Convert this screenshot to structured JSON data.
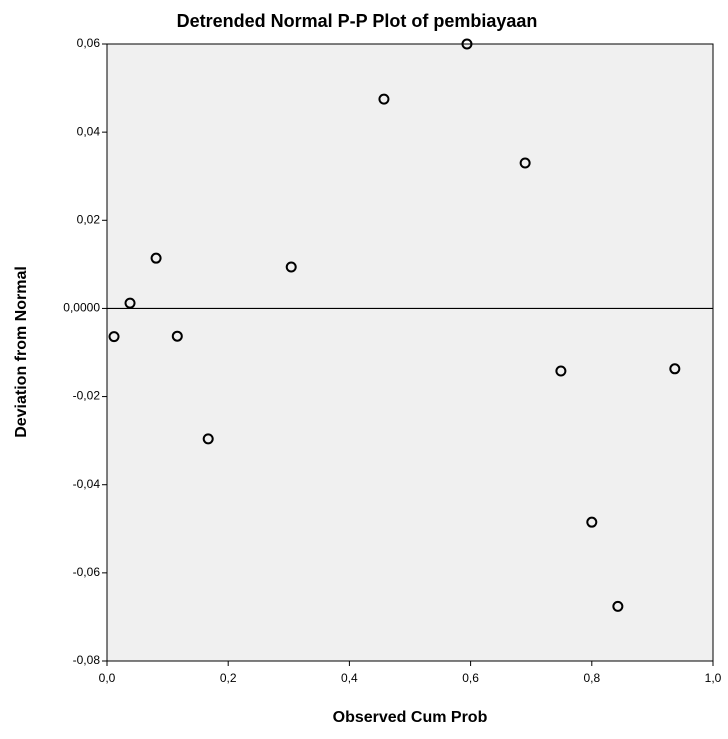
{
  "chart_data": {
    "type": "scatter",
    "title": "Detrended Normal P-P Plot of pembiayaan",
    "x_label": "Observed Cum Prob",
    "y_label": "Deviation from Normal",
    "x": [
      0.0116,
      0.038,
      0.081,
      0.116,
      0.167,
      0.304,
      0.457,
      0.594,
      0.69,
      0.749,
      0.8,
      0.843,
      0.937
    ],
    "values": [
      -0.0064,
      0.0012,
      0.0114,
      -0.0063,
      -0.0296,
      0.0094,
      0.0475,
      0.06,
      0.033,
      -0.0142,
      -0.0485,
      -0.0676,
      -0.0137
    ],
    "color": "#000000",
    "reference_y": 0,
    "xlim": [
      0,
      1
    ],
    "ylim": [
      -0.08,
      0.06
    ],
    "xticks": [
      {
        "value": 0,
        "label": "0,0"
      },
      {
        "value": 0.2,
        "label": "0,2"
      },
      {
        "value": 0.4,
        "label": "0,4"
      },
      {
        "value": 0.6,
        "label": "0,6"
      },
      {
        "value": 0.8,
        "label": "0,8"
      },
      {
        "value": 1,
        "label": "1,0"
      }
    ],
    "yticks": [
      {
        "value": -0.08,
        "label": "-0,08"
      },
      {
        "value": -0.06,
        "label": "-0,06"
      },
      {
        "value": -0.04,
        "label": "-0,04"
      },
      {
        "value": -0.02,
        "label": "-0,02"
      },
      {
        "value": 0,
        "label": "0,0000"
      },
      {
        "value": 0.02,
        "label": "0,02"
      },
      {
        "value": 0.04,
        "label": "0,04"
      },
      {
        "value": 0.06,
        "label": "0,06"
      }
    ]
  }
}
